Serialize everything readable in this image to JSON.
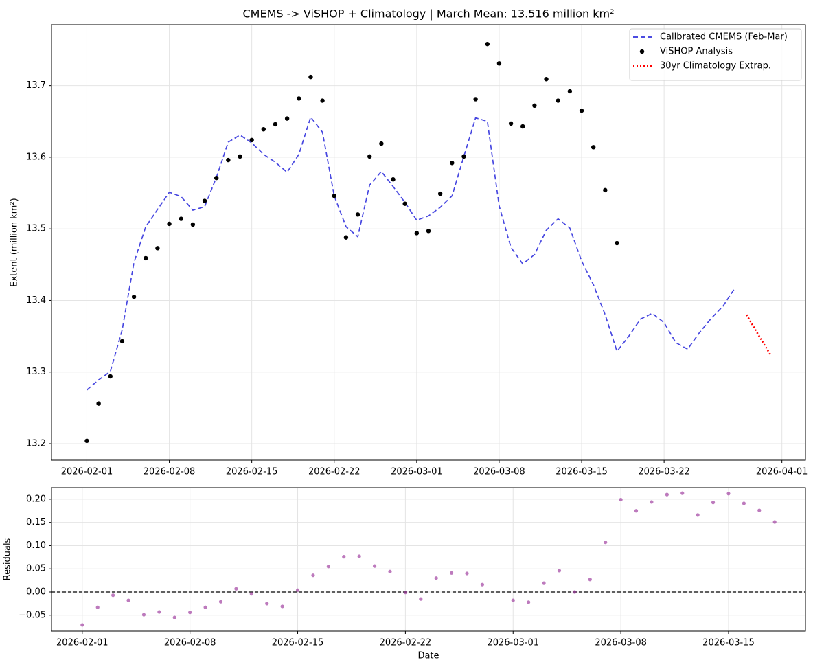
{
  "chart_data": [
    {
      "type": "line",
      "title": "CMEMS -> ViSHOP + Climatology | March Mean: 13.516 million km²",
      "ylabel": "Extent (million km²)",
      "x": [
        "2026-02-01",
        "2026-02-02",
        "2026-02-03",
        "2026-02-04",
        "2026-02-05",
        "2026-02-06",
        "2026-02-07",
        "2026-02-08",
        "2026-02-09",
        "2026-02-10",
        "2026-02-11",
        "2026-02-12",
        "2026-02-13",
        "2026-02-14",
        "2026-02-15",
        "2026-02-16",
        "2026-02-17",
        "2026-02-18",
        "2026-02-19",
        "2026-02-20",
        "2026-02-21",
        "2026-02-22",
        "2026-02-23",
        "2026-02-24",
        "2026-02-25",
        "2026-02-26",
        "2026-02-27",
        "2026-02-28",
        "2026-03-01",
        "2026-03-02",
        "2026-03-03",
        "2026-03-04",
        "2026-03-05",
        "2026-03-06",
        "2026-03-07",
        "2026-03-08",
        "2026-03-09",
        "2026-03-10",
        "2026-03-11",
        "2026-03-12",
        "2026-03-13",
        "2026-03-14",
        "2026-03-15",
        "2026-03-16",
        "2026-03-17",
        "2026-03-18",
        "2026-03-19",
        "2026-03-20",
        "2026-03-21",
        "2026-03-22",
        "2026-03-23",
        "2026-03-24",
        "2026-03-25",
        "2026-03-26",
        "2026-03-27",
        "2026-03-28",
        "2026-03-29",
        "2026-03-30",
        "2026-03-31"
      ],
      "series": [
        {
          "name": "Calibrated CMEMS (Feb-Mar)",
          "color": "#3333dd",
          "style": "dashed",
          "values": [
            13.275,
            13.289,
            13.301,
            13.359,
            13.453,
            13.503,
            13.527,
            13.551,
            13.545,
            13.526,
            13.531,
            13.572,
            13.621,
            13.631,
            13.62,
            13.604,
            13.593,
            13.579,
            13.604,
            13.656,
            13.635,
            13.546,
            13.503,
            13.489,
            13.561,
            13.58,
            13.559,
            13.537,
            13.512,
            13.518,
            13.53,
            13.546,
            13.601,
            13.655,
            13.65,
            13.532,
            13.474,
            13.451,
            13.464,
            13.498,
            13.514,
            13.501,
            13.455,
            13.422,
            13.38,
            13.329,
            13.35,
            13.374,
            13.382,
            13.369,
            13.341,
            13.332,
            13.355,
            13.375,
            13.392,
            13.417,
            null,
            null,
            null
          ]
        },
        {
          "name": "ViSHOP Analysis",
          "color": "#000000",
          "style": "markers",
          "values": [
            13.204,
            13.256,
            13.294,
            13.343,
            13.405,
            13.459,
            13.473,
            13.507,
            13.514,
            13.506,
            13.539,
            13.571,
            13.596,
            13.601,
            13.624,
            13.639,
            13.646,
            13.654,
            13.682,
            13.712,
            13.679,
            13.546,
            13.488,
            13.52,
            13.601,
            13.619,
            13.569,
            13.535,
            13.494,
            13.497,
            13.549,
            13.592,
            13.601,
            13.681,
            13.758,
            13.731,
            13.647,
            13.643,
            13.672,
            13.709,
            13.679,
            13.692,
            13.665,
            13.614,
            13.554,
            13.48,
            null,
            null,
            null,
            null,
            null,
            null,
            null,
            null,
            null,
            null,
            null,
            null,
            null
          ]
        },
        {
          "name": "30yr Climatology Extrap.",
          "color": "#ff0000",
          "style": "dotted",
          "values": [
            null,
            null,
            null,
            null,
            null,
            null,
            null,
            null,
            null,
            null,
            null,
            null,
            null,
            null,
            null,
            null,
            null,
            null,
            null,
            null,
            null,
            null,
            null,
            null,
            null,
            null,
            null,
            null,
            null,
            null,
            null,
            null,
            null,
            null,
            null,
            null,
            null,
            null,
            null,
            null,
            null,
            null,
            null,
            null,
            null,
            null,
            null,
            null,
            null,
            null,
            null,
            null,
            null,
            null,
            null,
            null,
            13.38,
            13.352,
            13.325
          ]
        }
      ],
      "xlim": [
        "2026-01-29",
        "2026-04-03"
      ],
      "xticks": [
        "2026-02-01",
        "2026-02-08",
        "2026-02-15",
        "2026-02-22",
        "2026-03-01",
        "2026-03-08",
        "2026-03-15",
        "2026-03-22",
        "2026-04-01"
      ],
      "ylim": [
        13.177,
        13.785
      ],
      "yticks": [
        13.2,
        13.3,
        13.4,
        13.5,
        13.6,
        13.7
      ],
      "grid": true,
      "legend": "upper right"
    },
    {
      "type": "scatter",
      "xlabel": "Date",
      "ylabel": "Residuals",
      "x": [
        "2026-02-01",
        "2026-02-02",
        "2026-02-03",
        "2026-02-04",
        "2026-02-05",
        "2026-02-06",
        "2026-02-07",
        "2026-02-08",
        "2026-02-09",
        "2026-02-10",
        "2026-02-11",
        "2026-02-12",
        "2026-02-13",
        "2026-02-14",
        "2026-02-15",
        "2026-02-16",
        "2026-02-17",
        "2026-02-18",
        "2026-02-19",
        "2026-02-20",
        "2026-02-21",
        "2026-02-22",
        "2026-02-23",
        "2026-02-24",
        "2026-02-25",
        "2026-02-26",
        "2026-02-27",
        "2026-02-28",
        "2026-03-01",
        "2026-03-02",
        "2026-03-03",
        "2026-03-04",
        "2026-03-05",
        "2026-03-06",
        "2026-03-07",
        "2026-03-08",
        "2026-03-09",
        "2026-03-10",
        "2026-03-11",
        "2026-03-12",
        "2026-03-13",
        "2026-03-14",
        "2026-03-15",
        "2026-03-16",
        "2026-03-17",
        "2026-03-18"
      ],
      "series": [
        {
          "color": "#993399",
          "style": "markers",
          "values": [
            -0.071,
            -0.033,
            -0.007,
            -0.018,
            -0.049,
            -0.043,
            -0.055,
            -0.044,
            -0.033,
            -0.021,
            0.007,
            -0.004,
            -0.025,
            -0.031,
            0.004,
            0.036,
            0.055,
            0.076,
            0.077,
            0.056,
            0.044,
            -0.001,
            -0.015,
            0.03,
            0.041,
            0.04,
            0.016,
            null,
            -0.018,
            -0.022,
            0.019,
            0.046,
            0.0,
            0.027,
            0.107,
            0.199,
            0.175,
            0.194,
            0.21,
            0.213,
            0.166,
            0.193,
            0.212,
            0.191,
            0.176,
            0.151
          ]
        }
      ],
      "hline": 0,
      "xlim": [
        "2026-01-30",
        "2026-03-20"
      ],
      "xticks": [
        "2026-02-01",
        "2026-02-08",
        "2026-02-15",
        "2026-02-22",
        "2026-03-01",
        "2026-03-08",
        "2026-03-15"
      ],
      "ylim": [
        -0.0844,
        0.225
      ],
      "yticks": [
        {
          "value": -0.05,
          "label": "−0.05"
        },
        {
          "value": 0,
          "label": "0.00"
        },
        {
          "value": 0.05,
          "label": "0.05"
        },
        {
          "value": 0.1,
          "label": "0.10"
        },
        {
          "value": 0.15,
          "label": "0.15"
        },
        {
          "value": 0.2,
          "label": "0.20"
        }
      ],
      "grid": true
    }
  ]
}
